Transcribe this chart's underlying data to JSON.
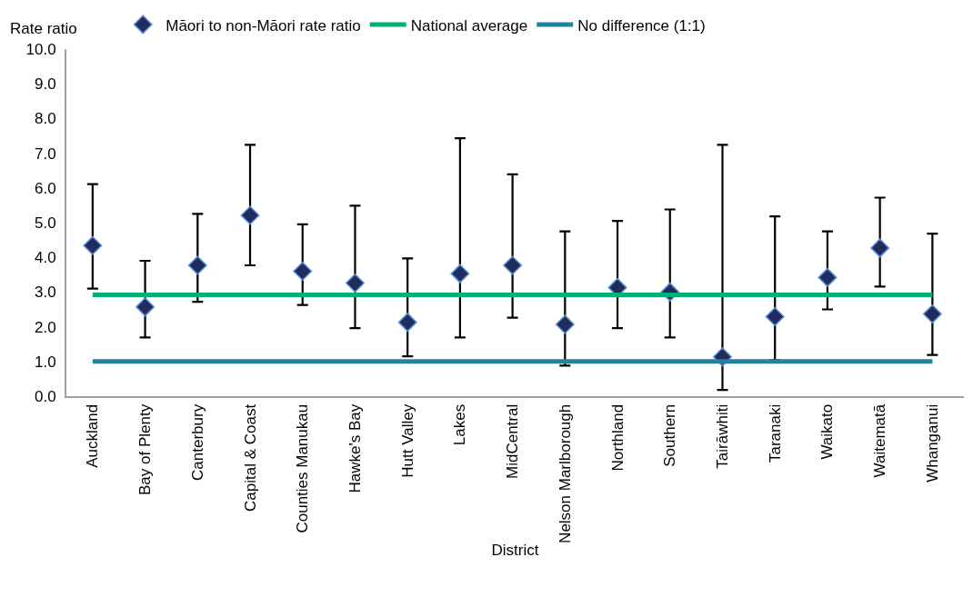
{
  "chart_data": {
    "type": "scatter",
    "xlabel": "District",
    "ylabel": "Rate ratio",
    "categories": [
      "Auckland",
      "Bay of Plenty",
      "Canterbury",
      "Capital & Coast",
      "Counties Manukau",
      "Hawke's Bay",
      "Hutt Valley",
      "Lakes",
      "MidCentral",
      "Nelson Marlborough",
      "Northland",
      "Southern",
      "Tairāwhiti",
      "Taranaki",
      "Waikato",
      "Waitematā",
      "Whanganui"
    ],
    "series": [
      {
        "name": "Māori to non-Māori rate ratio",
        "color": "#1f2d5c",
        "values": [
          4.34,
          2.57,
          3.77,
          5.21,
          3.6,
          3.26,
          2.13,
          3.53,
          3.77,
          2.07,
          3.13,
          3.0,
          1.13,
          2.29,
          3.42,
          4.27,
          2.37
        ],
        "errors": [
          [
            3.1,
            6.11
          ],
          [
            1.69,
            3.9
          ],
          [
            2.72,
            5.25
          ],
          [
            3.77,
            7.24
          ],
          [
            2.63,
            4.95
          ],
          [
            1.96,
            5.49
          ],
          [
            1.15,
            3.97
          ],
          [
            1.69,
            7.43
          ],
          [
            2.26,
            6.39
          ],
          [
            0.88,
            4.75
          ],
          [
            1.96,
            5.05
          ],
          [
            1.69,
            5.38
          ],
          [
            0.18,
            7.24
          ],
          [
            1.04,
            5.18
          ],
          [
            2.5,
            4.75
          ],
          [
            3.16,
            5.72
          ],
          [
            1.19,
            4.68
          ]
        ]
      }
    ],
    "marker": "diamond",
    "ref_lines": [
      {
        "axis": "y",
        "value": 2.92,
        "label": "National average",
        "color": "#00b074"
      },
      {
        "axis": "y",
        "value": 1.0,
        "label": "No difference (1:1)",
        "color": "#1f84a0"
      }
    ],
    "ylim": [
      0,
      10
    ],
    "yticks": [
      {
        "value": 0,
        "label": "0.0"
      },
      {
        "value": 1,
        "label": "1.0"
      },
      {
        "value": 2,
        "label": "2.0"
      },
      {
        "value": 3,
        "label": "3.0"
      },
      {
        "value": 4,
        "label": "4.0"
      },
      {
        "value": 5,
        "label": "5.0"
      },
      {
        "value": 6,
        "label": "6.0"
      },
      {
        "value": 7,
        "label": "7.0"
      },
      {
        "value": 8,
        "label": "8.0"
      },
      {
        "value": 9,
        "label": "9.0"
      },
      {
        "value": 10,
        "label": "10.0"
      }
    ],
    "grid": false,
    "legend": "top"
  }
}
